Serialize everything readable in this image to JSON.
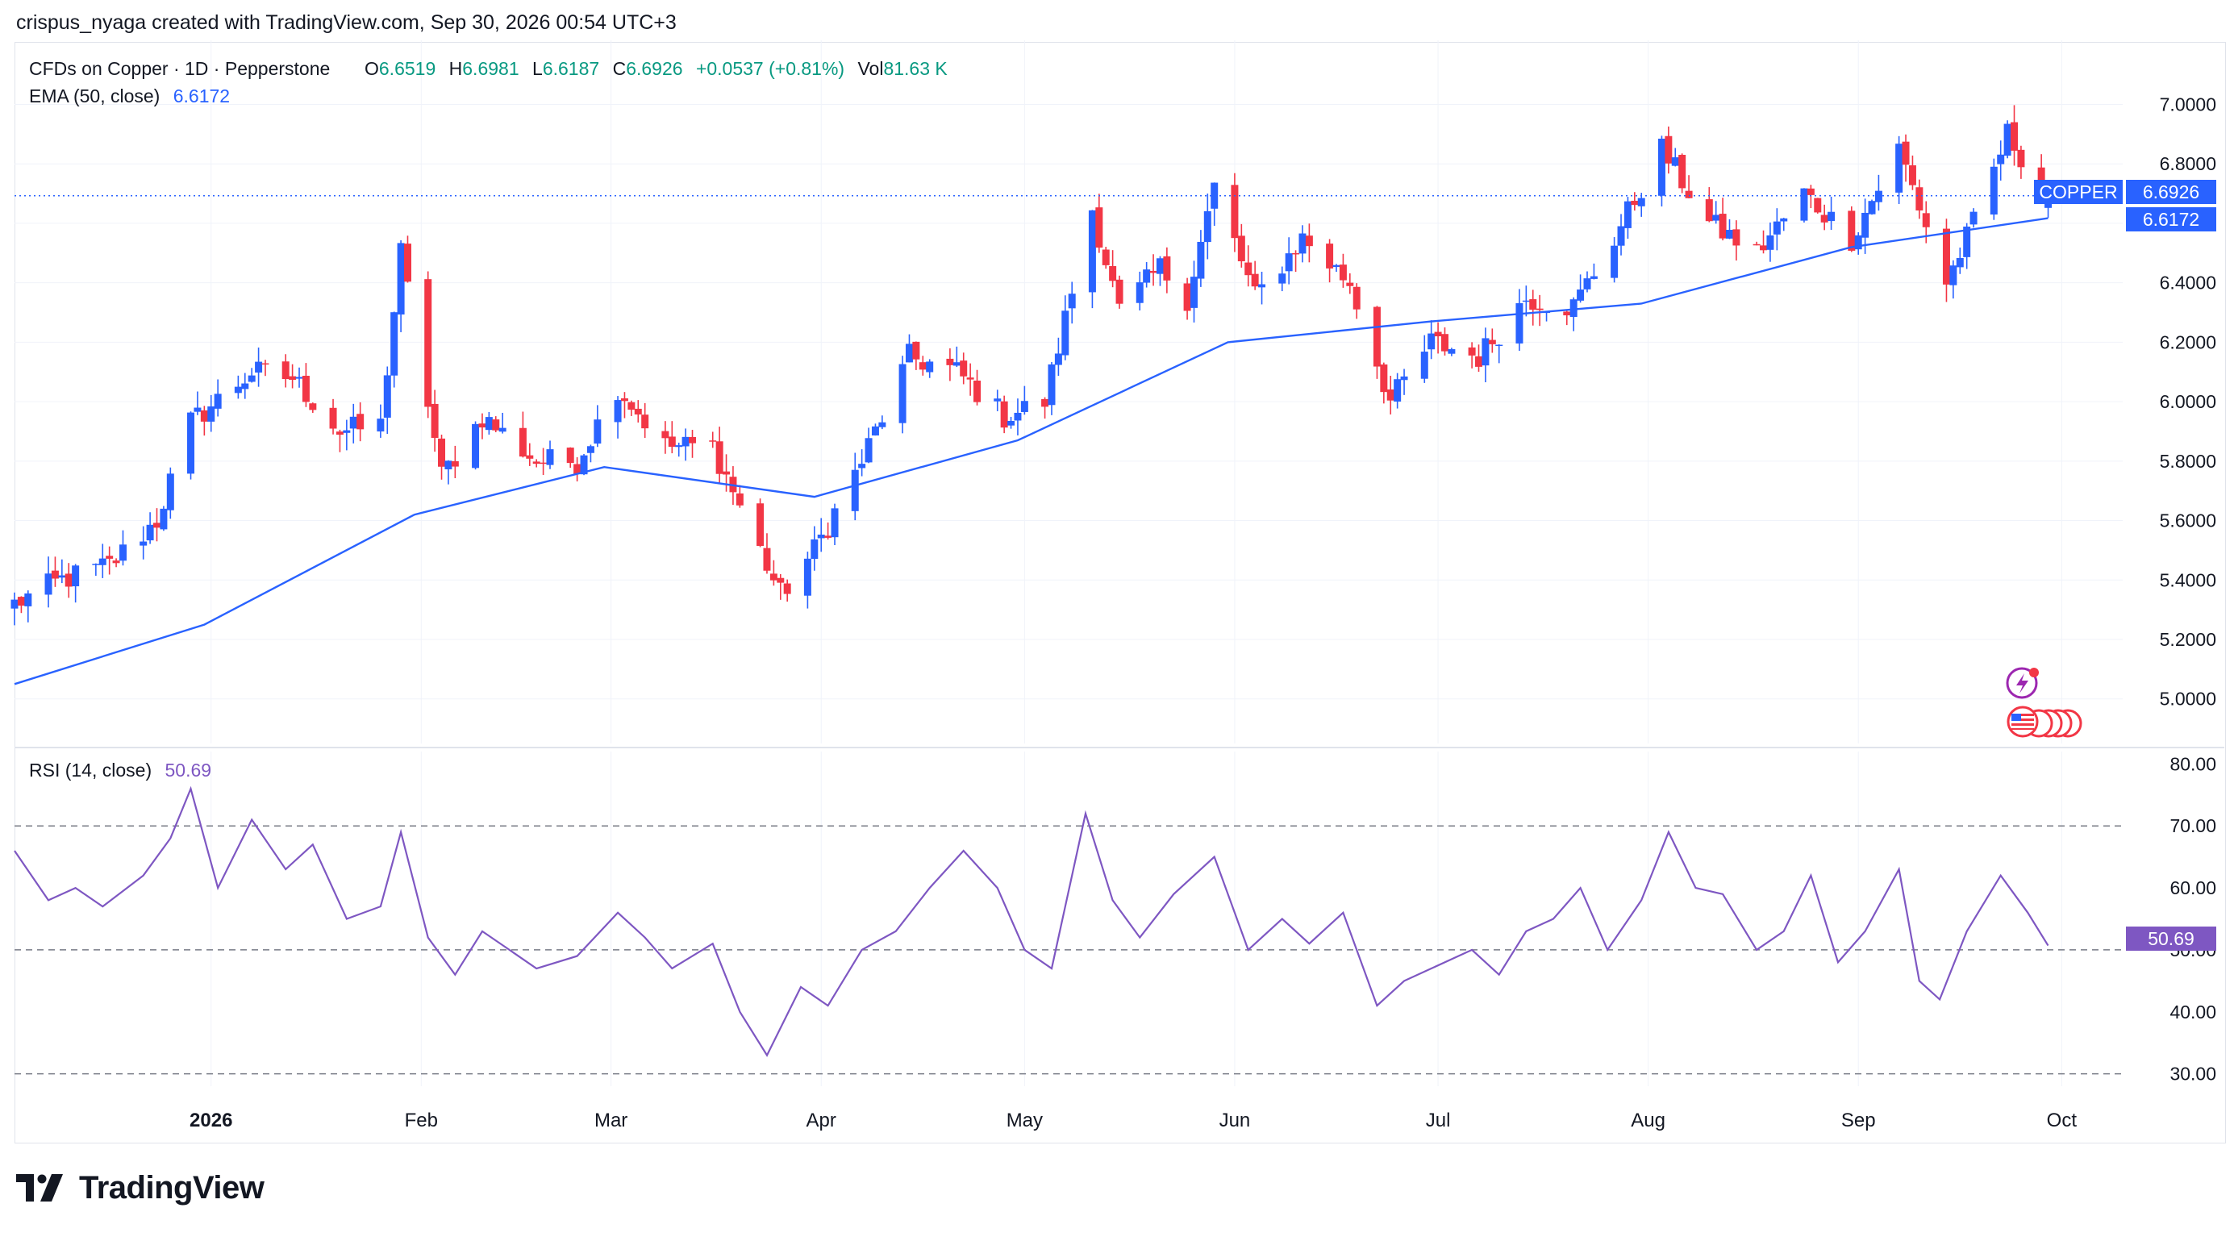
{
  "header": {
    "credit": "crispus_nyaga created with TradingView.com, Sep 30, 2026 00:54 UTC+3"
  },
  "legend": {
    "instrument": "CFDs on Copper · 1D · Pepperstone",
    "o_label": "O",
    "o_value": "6.6519",
    "h_label": "H",
    "h_value": "6.6981",
    "l_label": "L",
    "l_value": "6.6187",
    "c_label": "C",
    "c_value": "6.6926",
    "change": "+0.0537 (+0.81%)",
    "vol_label": "Vol",
    "vol_value": "81.63 K",
    "ema_label": "EMA (50, close)",
    "ema_value": "6.6172",
    "rsi_label": "RSI (14, close)",
    "rsi_value": "50.69"
  },
  "badges": {
    "symbol": "COPPER",
    "price": "6.6926",
    "ema": "6.6172",
    "rsi": "50.69"
  },
  "brand": {
    "name": "TradingView"
  },
  "icons": [
    "lightning-event-icon",
    "us-flag-events-icon"
  ],
  "colors": {
    "up": "#2962ff",
    "down": "#f23645",
    "ema": "#2962ff",
    "rsi": "#7e57c2",
    "grid": "#f0f3fa",
    "axis_text": "#131722",
    "price_line": "#2962ff"
  },
  "chart_data": [
    {
      "type": "candlestick",
      "title": "CFDs on Copper · 1D · Pepperstone",
      "x_axis_ticks": [
        "2026",
        "Feb",
        "Mar",
        "Apr",
        "May",
        "Jun",
        "Jul",
        "Aug",
        "Sep",
        "Oct"
      ],
      "y_axis_ticks": [
        "5.0000",
        "5.2000",
        "5.4000",
        "5.6000",
        "5.8000",
        "6.0000",
        "6.2000",
        "6.4000",
        "6.6000",
        "6.8000",
        "7.0000"
      ],
      "ylim": [
        4.85,
        7.08
      ],
      "x_range": [
        "2025-12-03",
        "2026-10-10"
      ],
      "grid": true,
      "last": {
        "open": 6.6519,
        "high": 6.6981,
        "low": 6.6187,
        "close": 6.6926
      },
      "anchors": [
        [
          "2025-12-03",
          5.32
        ],
        [
          "2025-12-10",
          5.4
        ],
        [
          "2025-12-17",
          5.45
        ],
        [
          "2025-12-24",
          5.6
        ],
        [
          "2025-12-29",
          5.93
        ],
        [
          "2026-01-07",
          6.1
        ],
        [
          "2026-01-13",
          6.08
        ],
        [
          "2026-01-20",
          5.9
        ],
        [
          "2026-01-26",
          5.92
        ],
        [
          "2026-01-29",
          6.5
        ],
        [
          "2026-02-04",
          5.75
        ],
        [
          "2026-02-10",
          5.95
        ],
        [
          "2026-02-18",
          5.8
        ],
        [
          "2026-02-24",
          5.8
        ],
        [
          "2026-03-02",
          6.05
        ],
        [
          "2026-03-09",
          5.85
        ],
        [
          "2026-03-16",
          5.85
        ],
        [
          "2026-03-23",
          5.5
        ],
        [
          "2026-03-26",
          5.35
        ],
        [
          "2026-03-31",
          5.5
        ],
        [
          "2026-04-07",
          5.8
        ],
        [
          "2026-04-14",
          6.15
        ],
        [
          "2026-04-21",
          6.1
        ],
        [
          "2026-04-28",
          5.95
        ],
        [
          "2026-05-04",
          6.0
        ],
        [
          "2026-05-11",
          6.65
        ],
        [
          "2026-05-15",
          6.3
        ],
        [
          "2026-05-21",
          6.45
        ],
        [
          "2026-05-25",
          6.35
        ],
        [
          "2026-05-29",
          6.72
        ],
        [
          "2026-06-04",
          6.35
        ],
        [
          "2026-06-11",
          6.55
        ],
        [
          "2026-06-18",
          6.4
        ],
        [
          "2026-06-24",
          6.0
        ],
        [
          "2026-06-30",
          6.2
        ],
        [
          "2026-07-07",
          6.15
        ],
        [
          "2026-07-14",
          6.35
        ],
        [
          "2026-07-21",
          6.32
        ],
        [
          "2026-07-27",
          6.55
        ],
        [
          "2026-08-03",
          6.85
        ],
        [
          "2026-08-10",
          6.6
        ],
        [
          "2026-08-17",
          6.5
        ],
        [
          "2026-08-24",
          6.7
        ],
        [
          "2026-08-31",
          6.55
        ],
        [
          "2026-09-07",
          6.85
        ],
        [
          "2026-09-14",
          6.4
        ],
        [
          "2026-09-18",
          6.6
        ],
        [
          "2026-09-23",
          6.9
        ],
        [
          "2026-09-29",
          6.69
        ]
      ],
      "series": [
        {
          "name": "EMA (50, close)",
          "type": "line",
          "points": [
            [
              "2025-12-03",
              5.05
            ],
            [
              "2025-12-31",
              5.25
            ],
            [
              "2026-01-31",
              5.62
            ],
            [
              "2026-02-28",
              5.78
            ],
            [
              "2026-03-31",
              5.68
            ],
            [
              "2026-04-30",
              5.87
            ],
            [
              "2026-05-31",
              6.2
            ],
            [
              "2026-06-30",
              6.27
            ],
            [
              "2026-07-31",
              6.33
            ],
            [
              "2026-08-31",
              6.52
            ],
            [
              "2026-09-29",
              6.6172
            ]
          ]
        }
      ],
      "current_price": 6.6926
    },
    {
      "type": "line",
      "title": "RSI (14, close)",
      "y_axis_ticks": [
        "30.00",
        "40.00",
        "50.00",
        "60.00",
        "70.00",
        "80.00"
      ],
      "ylim": [
        28,
        82
      ],
      "bands": [
        30,
        50,
        70
      ],
      "last_value": 50.69,
      "points": [
        [
          "2025-12-03",
          66
        ],
        [
          "2025-12-08",
          58
        ],
        [
          "2025-12-12",
          60
        ],
        [
          "2025-12-16",
          57
        ],
        [
          "2025-12-22",
          62
        ],
        [
          "2025-12-26",
          68
        ],
        [
          "2025-12-29",
          76
        ],
        [
          "2026-01-02",
          60
        ],
        [
          "2026-01-07",
          71
        ],
        [
          "2026-01-12",
          63
        ],
        [
          "2026-01-16",
          67
        ],
        [
          "2026-01-21",
          55
        ],
        [
          "2026-01-26",
          57
        ],
        [
          "2026-01-29",
          69
        ],
        [
          "2026-02-02",
          52
        ],
        [
          "2026-02-06",
          46
        ],
        [
          "2026-02-10",
          53
        ],
        [
          "2026-02-14",
          50
        ],
        [
          "2026-02-18",
          47
        ],
        [
          "2026-02-24",
          49
        ],
        [
          "2026-03-02",
          56
        ],
        [
          "2026-03-06",
          52
        ],
        [
          "2026-03-10",
          47
        ],
        [
          "2026-03-16",
          51
        ],
        [
          "2026-03-20",
          40
        ],
        [
          "2026-03-24",
          33
        ],
        [
          "2026-03-29",
          44
        ],
        [
          "2026-04-02",
          41
        ],
        [
          "2026-04-07",
          50
        ],
        [
          "2026-04-12",
          53
        ],
        [
          "2026-04-17",
          60
        ],
        [
          "2026-04-22",
          66
        ],
        [
          "2026-04-27",
          60
        ],
        [
          "2026-05-01",
          50
        ],
        [
          "2026-05-05",
          47
        ],
        [
          "2026-05-10",
          72
        ],
        [
          "2026-05-14",
          58
        ],
        [
          "2026-05-18",
          52
        ],
        [
          "2026-05-23",
          59
        ],
        [
          "2026-05-29",
          65
        ],
        [
          "2026-06-03",
          50
        ],
        [
          "2026-06-08",
          55
        ],
        [
          "2026-06-12",
          51
        ],
        [
          "2026-06-17",
          56
        ],
        [
          "2026-06-22",
          41
        ],
        [
          "2026-06-26",
          45
        ],
        [
          "2026-06-30",
          47
        ],
        [
          "2026-07-06",
          50
        ],
        [
          "2026-07-10",
          46
        ],
        [
          "2026-07-14",
          53
        ],
        [
          "2026-07-18",
          55
        ],
        [
          "2026-07-22",
          60
        ],
        [
          "2026-07-26",
          50
        ],
        [
          "2026-07-31",
          58
        ],
        [
          "2026-08-04",
          69
        ],
        [
          "2026-08-08",
          60
        ],
        [
          "2026-08-12",
          59
        ],
        [
          "2026-08-17",
          50
        ],
        [
          "2026-08-21",
          53
        ],
        [
          "2026-08-25",
          62
        ],
        [
          "2026-08-29",
          48
        ],
        [
          "2026-09-02",
          53
        ],
        [
          "2026-09-07",
          63
        ],
        [
          "2026-09-10",
          45
        ],
        [
          "2026-09-13",
          42
        ],
        [
          "2026-09-17",
          53
        ],
        [
          "2026-09-22",
          62
        ],
        [
          "2026-09-26",
          56
        ],
        [
          "2026-09-29",
          50.69
        ]
      ]
    }
  ]
}
